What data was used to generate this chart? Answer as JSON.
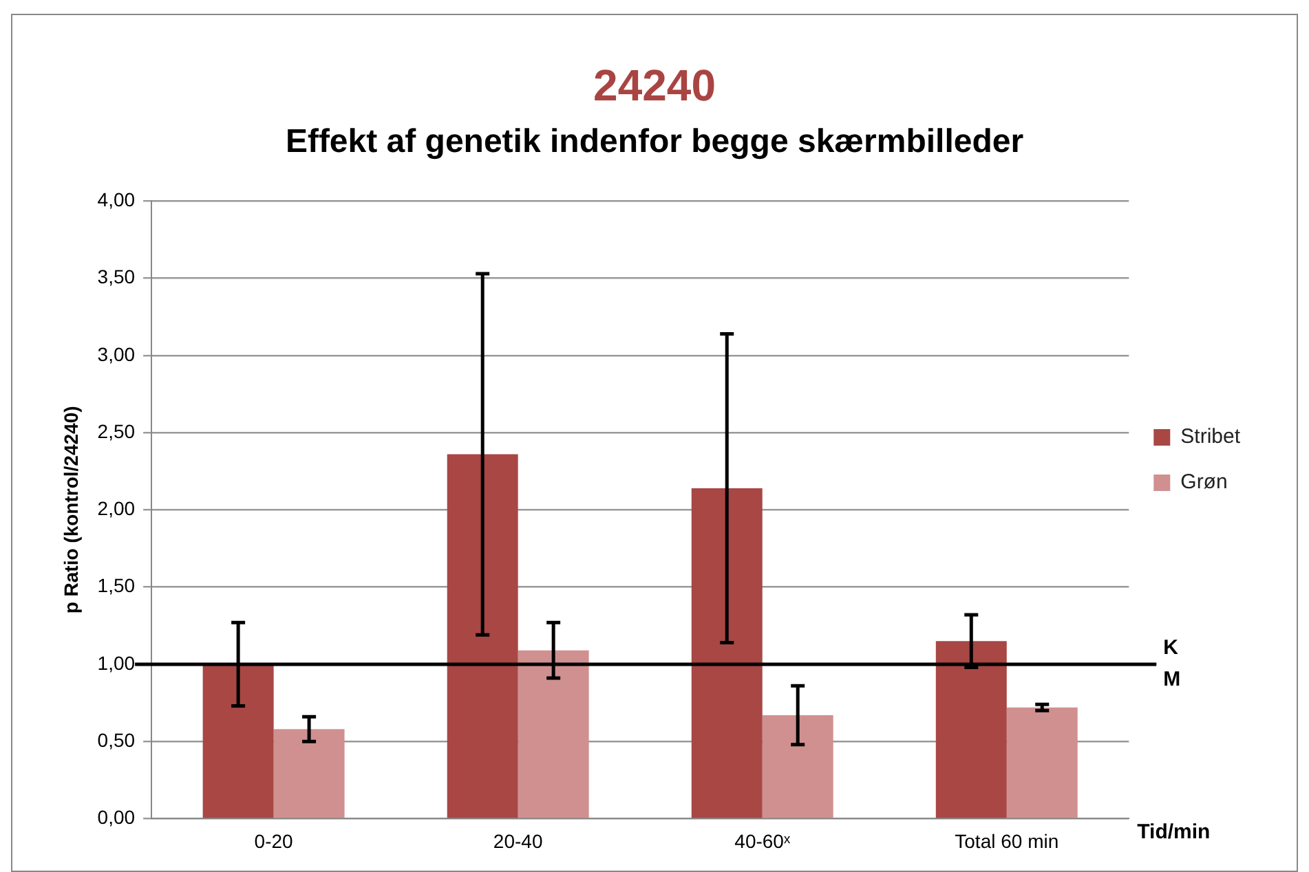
{
  "chart_data": {
    "type": "bar",
    "title": "24240",
    "subtitle": "Effekt af genetik indenfor begge skærmbilleder",
    "xlabel": "Tid/min",
    "ylabel": "p Ratio (kontrol/24240)",
    "categories": [
      "0-20",
      "20-40",
      "40-60ˣ",
      "Total 60 min"
    ],
    "series": [
      {
        "name": "Stribet",
        "color": "#a84744",
        "values": [
          1.0,
          2.36,
          2.14,
          1.15
        ],
        "errors": [
          0.27,
          1.17,
          1.0,
          0.17
        ]
      },
      {
        "name": "Grøn",
        "color": "#d09090",
        "values": [
          0.58,
          1.09,
          0.67,
          0.72
        ],
        "errors": [
          0.08,
          0.18,
          0.19,
          0.02
        ]
      }
    ],
    "ylim": [
      0,
      4
    ],
    "yticks": [
      {
        "value": 0,
        "label": "0,00"
      },
      {
        "value": 0.5,
        "label": "0,50"
      },
      {
        "value": 1,
        "label": "1,00"
      },
      {
        "value": 1.5,
        "label": "1,50"
      },
      {
        "value": 2,
        "label": "2,00"
      },
      {
        "value": 2.5,
        "label": "2,50"
      },
      {
        "value": 3,
        "label": "3,00"
      },
      {
        "value": 3.5,
        "label": "3,50"
      },
      {
        "value": 4,
        "label": "4,00"
      }
    ],
    "ref_lines": [
      {
        "axis": "y",
        "value": 1,
        "label": "K",
        "color": "#000000"
      }
    ],
    "annotations": [
      "M"
    ],
    "grid": "y",
    "legend": "right"
  }
}
